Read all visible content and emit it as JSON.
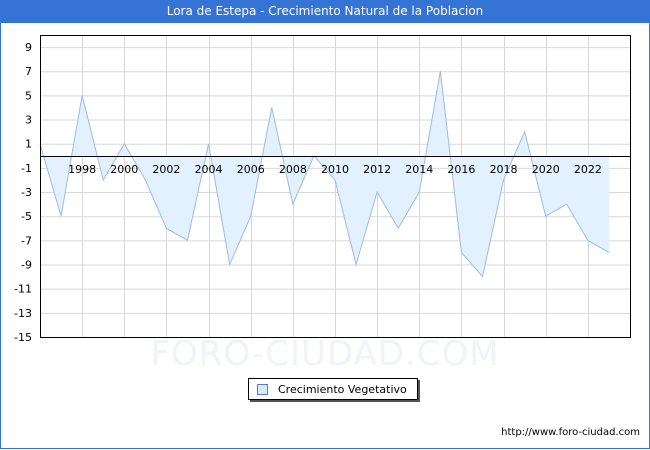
{
  "window": {
    "title": "Lora de Estepa - Crecimiento Natural de la Poblacion"
  },
  "watermark": "FORO-CIUDAD.COM",
  "footer": {
    "url": "http://www.foro-ciudad.com"
  },
  "legend": {
    "label": "Crecimiento Vegetativo"
  },
  "colors": {
    "title_bar": "#3574d4",
    "line": "#9bbce8",
    "fill": "#e3f0fd",
    "grid": "#d8d8d8",
    "axis": "#000000"
  },
  "chart_data": {
    "type": "area",
    "title": "Lora de Estepa - Crecimiento Natural de la Poblacion",
    "xlabel": "",
    "ylabel": "",
    "x": [
      1996,
      1997,
      1998,
      1999,
      2000,
      2001,
      2002,
      2003,
      2004,
      2005,
      2006,
      2007,
      2008,
      2009,
      2010,
      2011,
      2012,
      2013,
      2014,
      2015,
      2016,
      2017,
      2018,
      2019,
      2020,
      2021,
      2022,
      2023
    ],
    "series": [
      {
        "name": "Crecimiento Vegetativo",
        "values": [
          1,
          -5,
          5,
          -2,
          1,
          -2,
          -6,
          -7,
          1,
          -9,
          -5,
          4,
          -4,
          0,
          -2,
          -9,
          -3,
          -6,
          -3,
          7,
          -8,
          -10,
          -2,
          2,
          -5,
          -4,
          -7,
          -8
        ]
      }
    ],
    "x_tick_labels": [
      "1998",
      "2000",
      "2002",
      "2004",
      "2006",
      "2008",
      "2010",
      "2012",
      "2014",
      "2016",
      "2018",
      "2020",
      "2022"
    ],
    "y_tick_labels": [
      "9",
      "7",
      "5",
      "3",
      "1",
      "-1",
      "-3",
      "-5",
      "-7",
      "-9",
      "-11",
      "-13",
      "-15"
    ],
    "ylim": [
      -15,
      10
    ],
    "xlim": [
      1996,
      2024
    ],
    "grid": true,
    "legend_position": "bottom-center"
  }
}
